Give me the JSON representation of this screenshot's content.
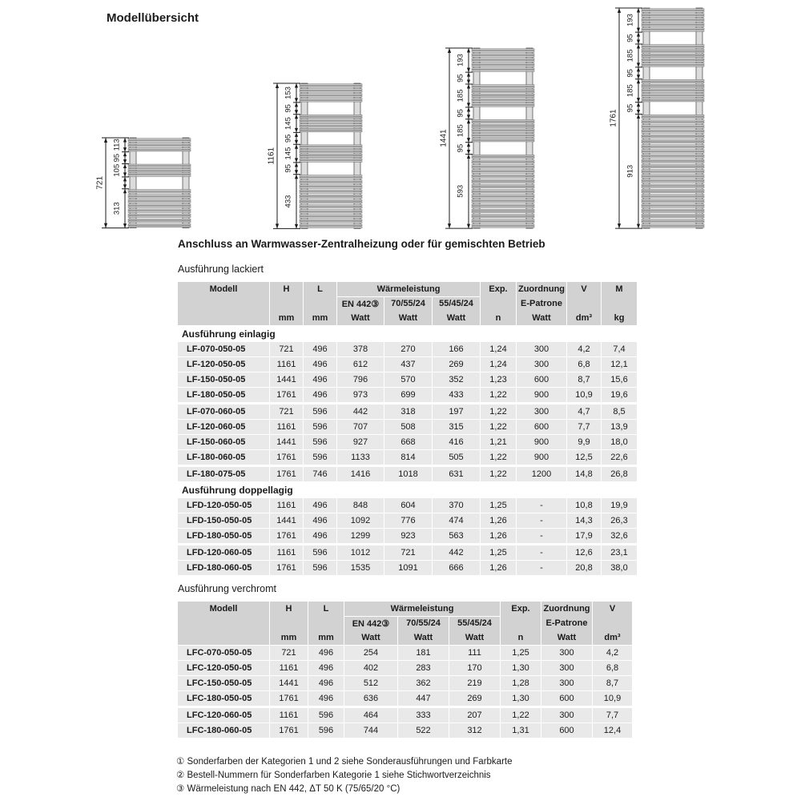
{
  "page": {
    "title": "Modellübersicht",
    "connection_heading": "Anschluss an Warmwasser-Zentralheizung oder für gemischten Betrieb",
    "table1_caption": "Ausführung lackiert",
    "table2_caption": "Ausführung verchromt"
  },
  "labels": {
    "modell": "Modell",
    "h": "H",
    "l": "L",
    "waermeleistung": "Wärmeleistung",
    "en442": "EN 442③",
    "c705524": "70/55/24",
    "c554524": "55/45/24",
    "exp": "Exp.",
    "zuordnung": "Zuordnung",
    "epatrone": "E-Patrone",
    "v": "V",
    "m": "M",
    "mm": "mm",
    "watt": "Watt",
    "n": "n",
    "dm3": "dm³",
    "kg": "kg"
  },
  "diagrams": [
    {
      "name": "radiator-721",
      "total_mm": 721,
      "total_label": "721",
      "segments": [
        {
          "mm": 113,
          "label": "113",
          "bars": true
        },
        {
          "mm": 95,
          "label": "95",
          "bars": false
        },
        {
          "mm": 105,
          "label": "105",
          "bars": true
        },
        {
          "mm": 95,
          "label": "",
          "bars": false
        },
        {
          "mm": 313,
          "label": "313",
          "bars": true
        }
      ]
    },
    {
      "name": "radiator-1161",
      "total_mm": 1161,
      "total_label": "1161",
      "segments": [
        {
          "mm": 153,
          "label": "153",
          "bars": true
        },
        {
          "mm": 95,
          "label": "95",
          "bars": false
        },
        {
          "mm": 145,
          "label": "145",
          "bars": true
        },
        {
          "mm": 95,
          "label": "95",
          "bars": false
        },
        {
          "mm": 145,
          "label": "145",
          "bars": true
        },
        {
          "mm": 95,
          "label": "95",
          "bars": false
        },
        {
          "mm": 433,
          "label": "433",
          "bars": true
        }
      ]
    },
    {
      "name": "radiator-1441",
      "total_mm": 1441,
      "total_label": "1441",
      "segments": [
        {
          "mm": 193,
          "label": "193",
          "bars": true
        },
        {
          "mm": 95,
          "label": "95",
          "bars": false
        },
        {
          "mm": 185,
          "label": "185",
          "bars": true
        },
        {
          "mm": 95,
          "label": "95",
          "bars": false
        },
        {
          "mm": 185,
          "label": "185",
          "bars": true
        },
        {
          "mm": 95,
          "label": "95",
          "bars": false
        },
        {
          "mm": 593,
          "label": "593",
          "bars": true
        }
      ]
    },
    {
      "name": "radiator-1761",
      "total_mm": 1761,
      "total_label": "1761",
      "segments": [
        {
          "mm": 193,
          "label": "193",
          "bars": true
        },
        {
          "mm": 95,
          "label": "95",
          "bars": false
        },
        {
          "mm": 185,
          "label": "185",
          "bars": true
        },
        {
          "mm": 95,
          "label": "95",
          "bars": false
        },
        {
          "mm": 185,
          "label": "185",
          "bars": true
        },
        {
          "mm": 95,
          "label": "95",
          "bars": false
        },
        {
          "mm": 913,
          "label": "913",
          "bars": true
        }
      ]
    }
  ],
  "table_lackiert": {
    "sections": [
      {
        "label": "Ausführung einlagig",
        "groups": [
          [
            [
              "LF-070-050-05",
              "721",
              "496",
              "378",
              "270",
              "166",
              "1,24",
              "300",
              "4,2",
              "7,4"
            ],
            [
              "LF-120-050-05",
              "1161",
              "496",
              "612",
              "437",
              "269",
              "1,24",
              "300",
              "6,8",
              "12,1"
            ],
            [
              "LF-150-050-05",
              "1441",
              "496",
              "796",
              "570",
              "352",
              "1,23",
              "600",
              "8,7",
              "15,6"
            ],
            [
              "LF-180-050-05",
              "1761",
              "496",
              "973",
              "699",
              "433",
              "1,22",
              "900",
              "10,9",
              "19,6"
            ]
          ],
          [
            [
              "LF-070-060-05",
              "721",
              "596",
              "442",
              "318",
              "197",
              "1,22",
              "300",
              "4,7",
              "8,5"
            ],
            [
              "LF-120-060-05",
              "1161",
              "596",
              "707",
              "508",
              "315",
              "1,22",
              "600",
              "7,7",
              "13,9"
            ],
            [
              "LF-150-060-05",
              "1441",
              "596",
              "927",
              "668",
              "416",
              "1,21",
              "900",
              "9,9",
              "18,0"
            ],
            [
              "LF-180-060-05",
              "1761",
              "596",
              "1133",
              "814",
              "505",
              "1,22",
              "900",
              "12,5",
              "22,6"
            ]
          ],
          [
            [
              "LF-180-075-05",
              "1761",
              "746",
              "1416",
              "1018",
              "631",
              "1,22",
              "1200",
              "14,8",
              "26,8"
            ]
          ]
        ]
      },
      {
        "label": "Ausführung doppellagig",
        "groups": [
          [
            [
              "LFD-120-050-05",
              "1161",
              "496",
              "848",
              "604",
              "370",
              "1,25",
              "-",
              "10,8",
              "19,9"
            ],
            [
              "LFD-150-050-05",
              "1441",
              "496",
              "1092",
              "776",
              "474",
              "1,26",
              "-",
              "14,3",
              "26,3"
            ],
            [
              "LFD-180-050-05",
              "1761",
              "496",
              "1299",
              "923",
              "563",
              "1,26",
              "-",
              "17,9",
              "32,6"
            ]
          ],
          [
            [
              "LFD-120-060-05",
              "1161",
              "596",
              "1012",
              "721",
              "442",
              "1,25",
              "-",
              "12,6",
              "23,1"
            ],
            [
              "LFD-180-060-05",
              "1761",
              "596",
              "1535",
              "1091",
              "666",
              "1,26",
              "-",
              "20,8",
              "38,0"
            ]
          ]
        ]
      }
    ]
  },
  "table_verchromt": {
    "groups": [
      [
        [
          "LFC-070-050-05",
          "721",
          "496",
          "254",
          "181",
          "111",
          "1,25",
          "300",
          "4,2"
        ],
        [
          "LFC-120-050-05",
          "1161",
          "496",
          "402",
          "283",
          "170",
          "1,30",
          "300",
          "6,8"
        ],
        [
          "LFC-150-050-05",
          "1441",
          "496",
          "512",
          "362",
          "219",
          "1,28",
          "300",
          "8,7"
        ],
        [
          "LFC-180-050-05",
          "1761",
          "496",
          "636",
          "447",
          "269",
          "1,30",
          "600",
          "10,9"
        ]
      ],
      [
        [
          "LFC-120-060-05",
          "1161",
          "596",
          "464",
          "333",
          "207",
          "1,22",
          "300",
          "7,7"
        ],
        [
          "LFC-180-060-05",
          "1761",
          "596",
          "744",
          "522",
          "312",
          "1,31",
          "600",
          "12,4"
        ]
      ]
    ]
  },
  "footnotes": [
    "① Sonderfarben der Kategorien 1 und 2 siehe Sonderausführungen und Farbkarte",
    "② Bestell-Nummern für Sonderfarben Kategorie 1 siehe Stichwortverzeichnis",
    "③ Wärmeleistung nach EN 442, ΔT 50 K (75/65/20 °C)"
  ],
  "colors": {
    "header_bg": "#d2d2d2",
    "row_bg": "#e9e9e9",
    "radiator_fill": "#d6d6d6",
    "line": "#1a1a1a"
  }
}
